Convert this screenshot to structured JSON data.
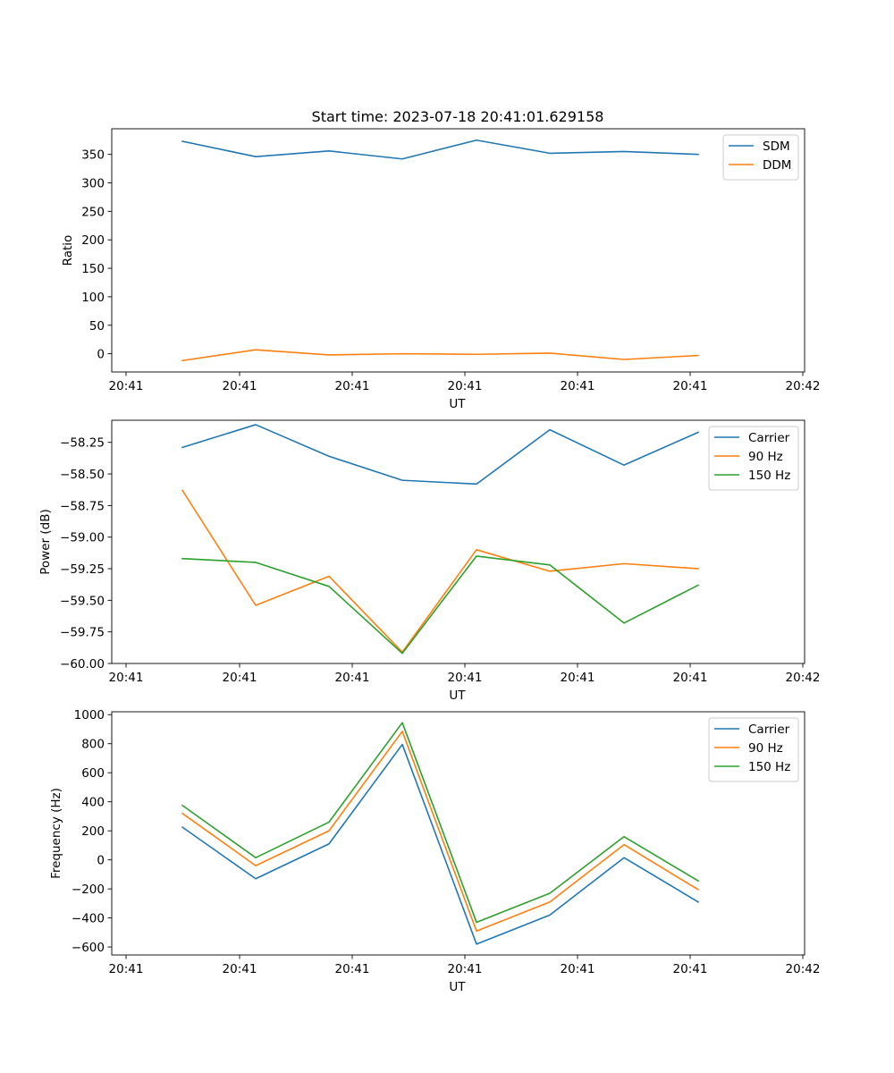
{
  "figure": {
    "title": "Start time: 2023-07-18 20:41:01.629158"
  },
  "chart_data": [
    {
      "type": "line",
      "title": "Start time: 2023-07-18 20:41:01.629158",
      "xlabel": "UT",
      "ylabel": "Ratio",
      "x_tick_labels": [
        "20:41",
        "20:41",
        "20:41",
        "20:41",
        "20:41",
        "20:41",
        "20:42"
      ],
      "y_ticks": [
        0,
        50,
        100,
        150,
        200,
        250,
        300,
        350
      ],
      "y_tick_labels": [
        "0",
        "50",
        "100",
        "150",
        "200",
        "250",
        "300",
        "350"
      ],
      "ylim": [
        -32,
        395
      ],
      "legend": "top-right",
      "x": [
        0,
        1,
        2,
        3,
        4,
        5,
        6,
        7
      ],
      "series": [
        {
          "name": "SDM",
          "color": "#1f77b4",
          "values": [
            373,
            346,
            356,
            342,
            375,
            352,
            355,
            350
          ]
        },
        {
          "name": "DDM",
          "color": "#ff7f0e",
          "values": [
            -12,
            7,
            -2,
            0,
            -1,
            1,
            -10,
            -3
          ]
        }
      ]
    },
    {
      "type": "line",
      "title": "",
      "xlabel": "UT",
      "ylabel": "Power (dB)",
      "x_tick_labels": [
        "20:41",
        "20:41",
        "20:41",
        "20:41",
        "20:41",
        "20:41",
        "20:42"
      ],
      "y_ticks": [
        -60.0,
        -59.75,
        -59.5,
        -59.25,
        -59.0,
        -58.75,
        -58.5,
        -58.25
      ],
      "y_tick_labels": [
        "−60.00",
        "−59.75",
        "−59.50",
        "−59.25",
        "−59.00",
        "−58.75",
        "−58.50",
        "−58.25"
      ],
      "ylim": [
        -60.0,
        -58.075
      ],
      "legend": "top-right",
      "x": [
        0,
        1,
        2,
        3,
        4,
        5,
        6,
        7
      ],
      "series": [
        {
          "name": "Carrier",
          "color": "#1f77b4",
          "values": [
            -58.29,
            -58.11,
            -58.36,
            -58.55,
            -58.58,
            -58.15,
            -58.43,
            -58.17
          ]
        },
        {
          "name": "90 Hz",
          "color": "#ff7f0e",
          "values": [
            -58.63,
            -59.54,
            -59.31,
            -59.91,
            -59.1,
            -59.27,
            -59.21,
            -59.25
          ]
        },
        {
          "name": "150 Hz",
          "color": "#2ca02c",
          "values": [
            -59.17,
            -59.2,
            -59.39,
            -59.92,
            -59.15,
            -59.22,
            -59.68,
            -59.38
          ]
        }
      ]
    },
    {
      "type": "line",
      "title": "",
      "xlabel": "UT",
      "ylabel": "Frequency (Hz)",
      "x_tick_labels": [
        "20:41",
        "20:41",
        "20:41",
        "20:41",
        "20:41",
        "20:41",
        "20:42"
      ],
      "y_ticks": [
        -600,
        -400,
        -200,
        0,
        200,
        400,
        600,
        800,
        1000
      ],
      "y_tick_labels": [
        "−600",
        "−400",
        "−200",
        "0",
        "200",
        "400",
        "600",
        "800",
        "1000"
      ],
      "ylim": [
        -655,
        1020
      ],
      "legend": "top-right",
      "x": [
        0,
        1,
        2,
        3,
        4,
        5,
        6,
        7
      ],
      "series": [
        {
          "name": "Carrier",
          "color": "#1f77b4",
          "values": [
            225,
            -130,
            110,
            795,
            -580,
            -380,
            15,
            -290
          ]
        },
        {
          "name": "90 Hz",
          "color": "#ff7f0e",
          "values": [
            320,
            -40,
            200,
            885,
            -490,
            -290,
            105,
            -205
          ]
        },
        {
          "name": "150 Hz",
          "color": "#2ca02c",
          "values": [
            375,
            15,
            260,
            945,
            -430,
            -230,
            160,
            -145
          ]
        }
      ]
    }
  ]
}
